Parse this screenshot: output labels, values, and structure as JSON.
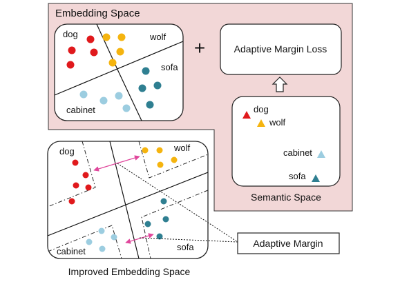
{
  "titles": {
    "embedding_space": "Embedding Space",
    "semantic_space": "Semantic Space",
    "improved_embedding_space": "Improved Embedding Space"
  },
  "operator": "+",
  "boxes": {
    "loss": "Adaptive Margin Loss",
    "margin": "Adaptive Margin"
  },
  "class_labels": {
    "dog": "dog",
    "wolf": "wolf",
    "sofa": "sofa",
    "cabinet": "cabinet"
  },
  "colors": {
    "panel_fill": "#f2d7d7",
    "dog": "#e0191c",
    "wolf": "#f5b40f",
    "sofa": "#2f7f91",
    "cabinet": "#9ccde0",
    "margin_arrow": "#e0479c"
  },
  "icons": {
    "up_arrow": "hollow-up-arrow-icon"
  }
}
